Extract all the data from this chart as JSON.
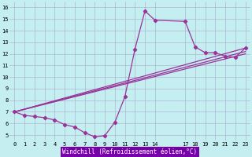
{
  "xlabel": "Windchill (Refroidissement éolien,°C)",
  "bg_color": "#c5eef0",
  "line_color": "#993399",
  "grid_color": "#aaaacc",
  "xlabel_bg": "#7700aa",
  "xlim_min": -0.5,
  "xlim_max": 23.5,
  "ylim_min": 4.5,
  "ylim_max": 16.5,
  "xticks": [
    0,
    1,
    2,
    3,
    4,
    5,
    6,
    7,
    8,
    9,
    10,
    11,
    12,
    13,
    14,
    17,
    18,
    19,
    20,
    21,
    22,
    23
  ],
  "yticks": [
    5,
    6,
    7,
    8,
    9,
    10,
    11,
    12,
    13,
    14,
    15,
    16
  ],
  "curves": [
    {
      "x": [
        0,
        1,
        2,
        3,
        4,
        5,
        6,
        7,
        8,
        9,
        10,
        11,
        12,
        13,
        14,
        17,
        18,
        19,
        20,
        21,
        22,
        23
      ],
      "y": [
        7.0,
        6.7,
        6.6,
        6.5,
        6.3,
        5.9,
        5.7,
        5.2,
        4.85,
        4.95,
        6.1,
        8.3,
        12.4,
        15.7,
        14.9,
        14.8,
        12.6,
        12.1,
        12.1,
        11.8,
        11.7,
        12.5
      ],
      "has_markers": true
    },
    {
      "x": [
        0,
        23
      ],
      "y": [
        7.0,
        12.5
      ],
      "has_markers": false
    },
    {
      "x": [
        0,
        23
      ],
      "y": [
        7.0,
        12.2
      ],
      "has_markers": false
    },
    {
      "x": [
        0,
        23
      ],
      "y": [
        7.0,
        12.0
      ],
      "has_markers": false
    }
  ],
  "linewidth": 0.9,
  "markersize": 2.2,
  "tick_fontsize": 5.0,
  "xlabel_fontsize": 5.5
}
